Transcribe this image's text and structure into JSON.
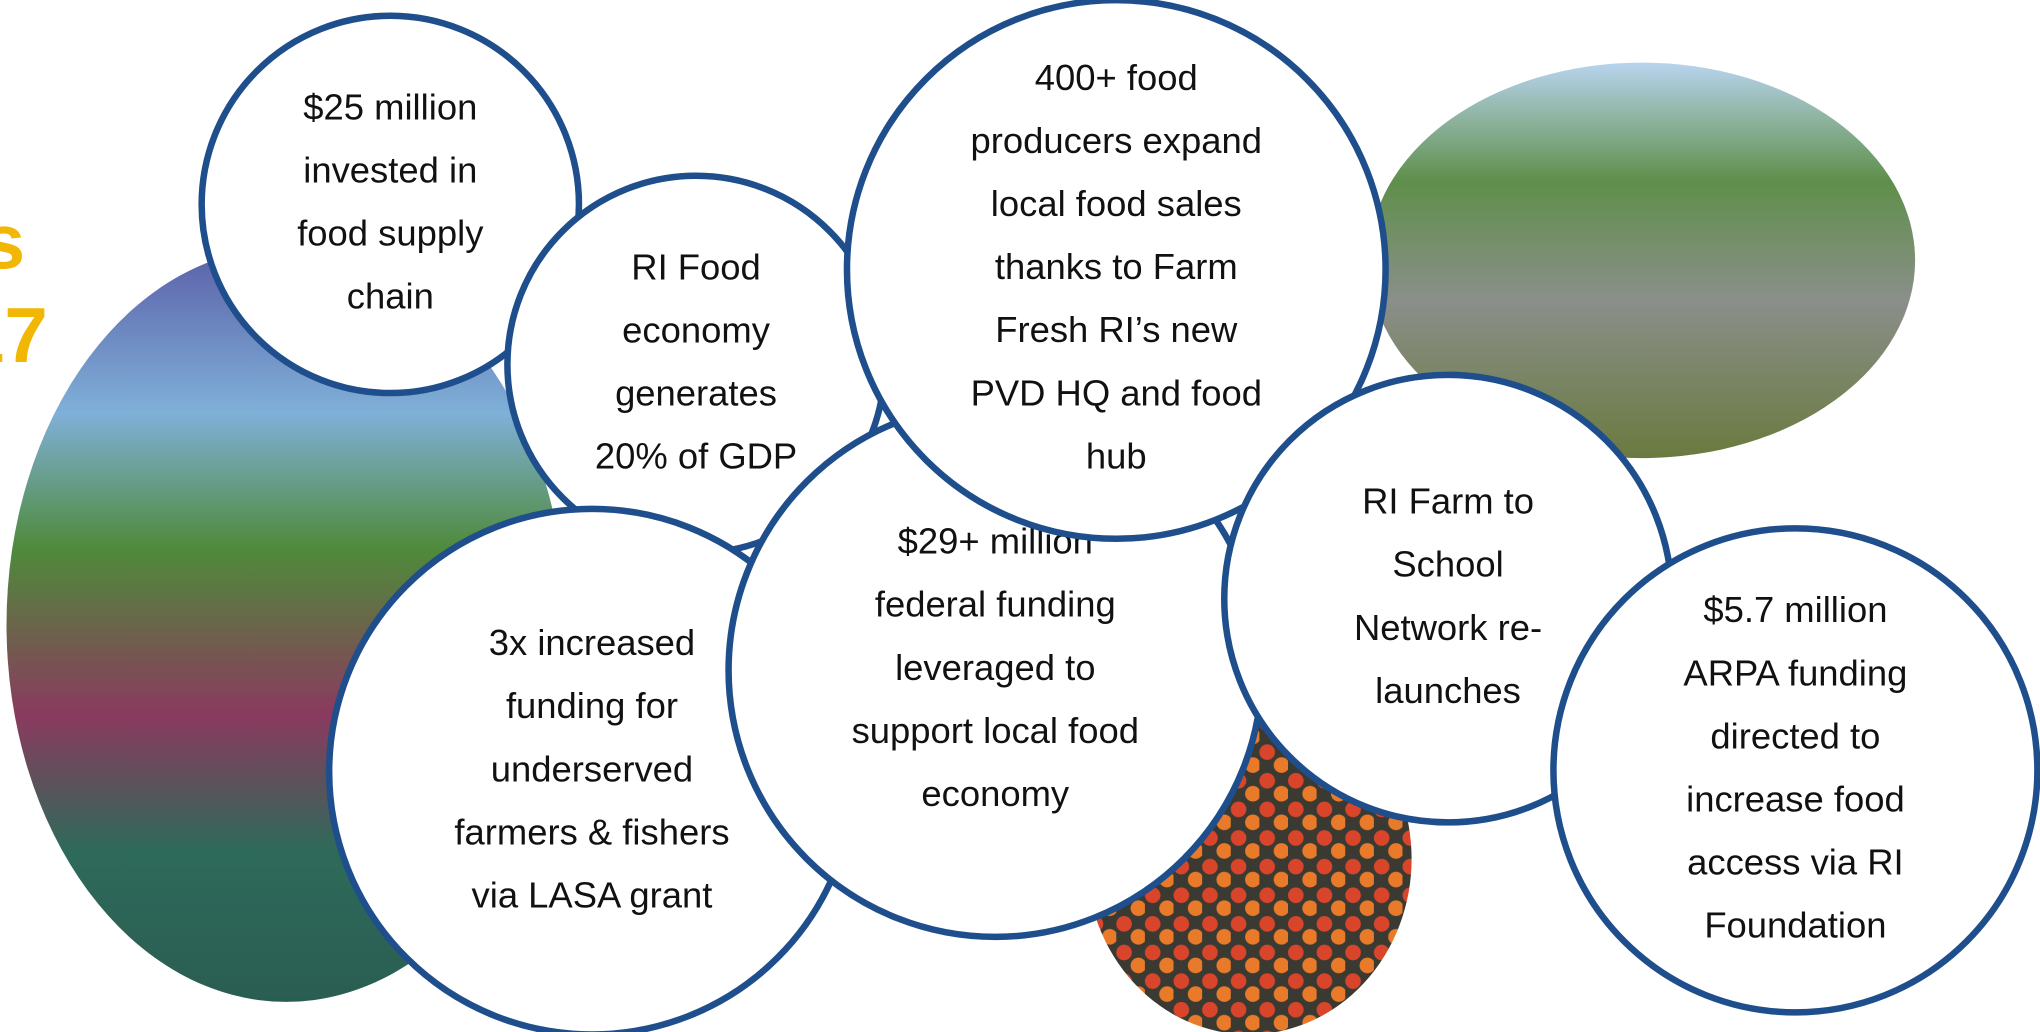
{
  "heading_fragments": [
    "s",
    "17"
  ],
  "bubbles": [
    {
      "lines": [
        "$25 million",
        "invested in",
        "food supply",
        "chain"
      ]
    },
    {
      "lines": [
        "RI Food",
        "economy",
        "generates",
        "20% of GDP"
      ]
    },
    {
      "lines": [
        "3x increased",
        "funding for",
        "underserved",
        "farmers & fishers",
        "via LASA grant"
      ]
    },
    {
      "lines": [
        "$29+ million",
        "federal funding",
        "leveraged to",
        "support local food",
        "economy"
      ]
    },
    {
      "lines": [
        "400+ food",
        "producers expand",
        "local food sales",
        "thanks to Farm",
        "Fresh RI’s new",
        "PVD HQ and food",
        "hub"
      ]
    },
    {
      "lines": [
        "RI Farm to",
        "School",
        "Network re-",
        "launches"
      ]
    },
    {
      "lines": [
        "$5.7 million",
        "ARPA funding",
        "directed to",
        "increase food",
        "access via RI",
        "Foundation"
      ]
    }
  ]
}
